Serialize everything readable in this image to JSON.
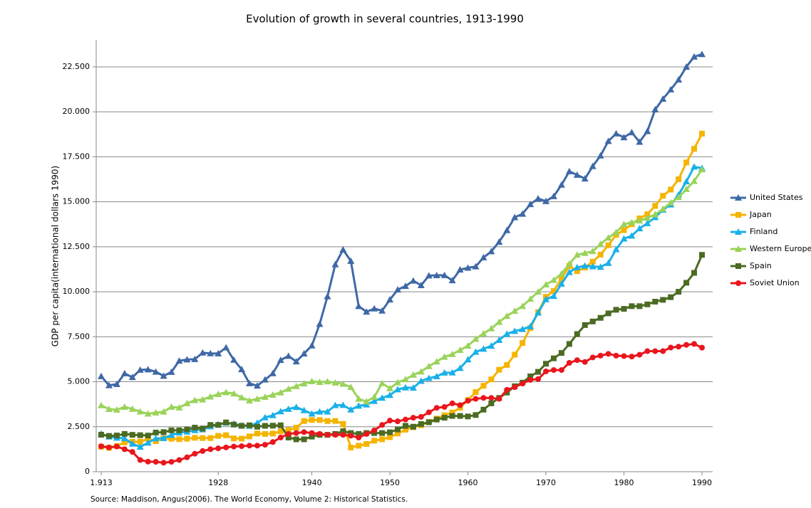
{
  "chart_data": {
    "type": "line",
    "title": "Evolution of growth in several countries, 1913-1990",
    "y_label": "GDP per capita(international dollars 1990)",
    "source": "Source:  Maddison, Angus(2006). The World Economy, Volume 2: Historical Statistics.",
    "x": [
      1913,
      1914,
      1915,
      1916,
      1917,
      1918,
      1919,
      1920,
      1921,
      1922,
      1923,
      1924,
      1925,
      1926,
      1927,
      1928,
      1929,
      1930,
      1931,
      1932,
      1933,
      1934,
      1935,
      1936,
      1937,
      1938,
      1939,
      1940,
      1941,
      1942,
      1943,
      1944,
      1945,
      1946,
      1947,
      1948,
      1949,
      1950,
      1951,
      1952,
      1953,
      1954,
      1955,
      1956,
      1957,
      1958,
      1959,
      1960,
      1961,
      1962,
      1963,
      1964,
      1965,
      1966,
      1967,
      1968,
      1969,
      1970,
      1971,
      1972,
      1973,
      1974,
      1975,
      1976,
      1977,
      1978,
      1979,
      1980,
      1981,
      1982,
      1983,
      1984,
      1985,
      1986,
      1987,
      1988,
      1989,
      1990
    ],
    "xlim": [
      1913,
      1990
    ],
    "xticks": [
      {
        "value": 1913,
        "label": "1.913"
      },
      1928,
      1940,
      1950,
      1960,
      1970,
      1980,
      1990
    ],
    "ylim": [
      0,
      24000
    ],
    "yticks": [
      0,
      {
        "value": 2500,
        "label": "2.500"
      },
      {
        "value": 5000,
        "label": "5.000"
      },
      {
        "value": 7500,
        "label": "7.500"
      },
      {
        "value": 10000,
        "label": "10.000"
      },
      {
        "value": 12500,
        "label": "12.500"
      },
      {
        "value": 15000,
        "label": "15.000"
      },
      {
        "value": 17500,
        "label": "17.500"
      },
      {
        "value": 20000,
        "label": "20.000"
      },
      {
        "value": 22500,
        "label": "22.500"
      }
    ],
    "grid": true,
    "legend": "right",
    "series": [
      {
        "name": "United States",
        "color": "#3f68a6",
        "marker": "triangle",
        "values": [
          5301,
          4799,
          4864,
          5459,
          5248,
          5659,
          5680,
          5552,
          5323,
          5540,
          6164,
          6233,
          6252,
          6612,
          6575,
          6569,
          6899,
          6213,
          5691,
          4908,
          4777,
          5114,
          5467,
          6204,
          6430,
          6126,
          6561,
          7010,
          8206,
          9741,
          11518,
          12341,
          11709,
          9197,
          8886,
          9065,
          8944,
          9561,
          10116,
          10316,
          10613,
          10359,
          10897,
          10914,
          10920,
          10631,
          11230,
          11328,
          11402,
          11905,
          12242,
          12773,
          13419,
          14134,
          14330,
          14863,
          15179,
          15030,
          15304,
          15944,
          16689,
          16491,
          16284,
          16975,
          17567,
          18373,
          18789,
          18577,
          18856,
          18325,
          18920,
          20123,
          20717,
          21236,
          21788,
          22499,
          23059,
          23201
        ]
      },
      {
        "name": "Japan",
        "color": "#f5b400",
        "marker": "square",
        "values": [
          1387,
          1327,
          1430,
          1630,
          1665,
          1668,
          1827,
          1696,
          1860,
          1831,
          1809,
          1836,
          1885,
          1872,
          1870,
          1992,
          2026,
          1850,
          1837,
          1962,
          2122,
          2098,
          2120,
          2244,
          2315,
          2449,
          2816,
          2874,
          2873,
          2818,
          2822,
          2659,
          1346,
          1444,
          1541,
          1725,
          1800,
          1921,
          2126,
          2336,
          2474,
          2582,
          2771,
          2948,
          3136,
          3289,
          3554,
          3986,
          4426,
          4777,
          5129,
          5668,
          5934,
          6506,
          7152,
          7983,
          8874,
          9714,
          10040,
          10734,
          11434,
          11145,
          11344,
          11669,
          12064,
          12585,
          13163,
          13428,
          13754,
          14078,
          14307,
          14773,
          15332,
          15680,
          16251,
          17185,
          17943,
          18789
        ]
      },
      {
        "name": "Finland",
        "color": "#1ab0e8",
        "marker": "triangle",
        "values": [
          2111,
          1947,
          1881,
          1854,
          1552,
          1379,
          1607,
          1846,
          1862,
          2035,
          2172,
          2226,
          2304,
          2349,
          2517,
          2624,
          2717,
          2666,
          2568,
          2543,
          2715,
          3017,
          3132,
          3350,
          3486,
          3589,
          3408,
          3220,
          3336,
          3336,
          3690,
          3702,
          3450,
          3660,
          3725,
          3926,
          4102,
          4253,
          4571,
          4677,
          4660,
          5043,
          5197,
          5299,
          5501,
          5504,
          5756,
          6230,
          6658,
          6823,
          6994,
          7317,
          7657,
          7812,
          7923,
          8069,
          8838,
          9577,
          9761,
          10444,
          11085,
          11353,
          11441,
          11409,
          11378,
          11596,
          12357,
          12949,
          13110,
          13517,
          13806,
          14140,
          14557,
          14843,
          15389,
          16129,
          16946,
          16866
        ]
      },
      {
        "name": "Western Europe",
        "color": "#9ad35a",
        "marker": "triangle",
        "values": [
          3688,
          3478,
          3440,
          3600,
          3490,
          3340,
          3220,
          3280,
          3330,
          3600,
          3560,
          3800,
          3970,
          4010,
          4170,
          4310,
          4410,
          4340,
          4120,
          3950,
          4050,
          4150,
          4270,
          4400,
          4600,
          4750,
          4900,
          5020,
          4980,
          5010,
          4940,
          4880,
          4700,
          4050,
          3900,
          4150,
          4920,
          4630,
          4960,
          5130,
          5380,
          5560,
          5860,
          6120,
          6380,
          6530,
          6760,
          7000,
          7380,
          7680,
          7960,
          8320,
          8650,
          8930,
          9200,
          9600,
          10000,
          10400,
          10650,
          11000,
          11550,
          12050,
          12150,
          12250,
          12650,
          13000,
          13300,
          13750,
          13850,
          13950,
          14100,
          14300,
          14600,
          14950,
          15250,
          15700,
          16150,
          16800
        ]
      },
      {
        "name": "Spain",
        "color": "#4b6b23",
        "marker": "square",
        "values": [
          2056,
          1990,
          2014,
          2100,
          2050,
          2030,
          2010,
          2177,
          2200,
          2300,
          2300,
          2350,
          2450,
          2400,
          2600,
          2600,
          2739,
          2620,
          2550,
          2580,
          2500,
          2550,
          2560,
          2580,
          1900,
          1800,
          1800,
          1950,
          2050,
          2050,
          2100,
          2250,
          2150,
          2100,
          2150,
          2150,
          2150,
          2189,
          2350,
          2550,
          2500,
          2650,
          2750,
          2900,
          3000,
          3100,
          3100,
          3072,
          3150,
          3450,
          3800,
          4100,
          4400,
          4750,
          4950,
          5300,
          5550,
          6000,
          6300,
          6600,
          7100,
          7650,
          8150,
          8350,
          8550,
          8800,
          9000,
          9050,
          9200,
          9200,
          9300,
          9450,
          9550,
          9700,
          10000,
          10500,
          11050,
          12050
        ]
      },
      {
        "name": "Soviet Union",
        "color": "#e8161d",
        "marker": "circle",
        "values": [
          1414,
          1350,
          1400,
          1250,
          1100,
          650,
          560,
          550,
          500,
          550,
          650,
          800,
          1000,
          1150,
          1250,
          1300,
          1350,
          1400,
          1420,
          1450,
          1450,
          1500,
          1650,
          1900,
          2100,
          2150,
          2200,
          2150,
          2100,
          2050,
          2050,
          2050,
          2000,
          1900,
          2100,
          2300,
          2600,
          2841,
          2800,
          2900,
          3000,
          3050,
          3300,
          3550,
          3600,
          3800,
          3700,
          3945,
          4050,
          4100,
          4100,
          4050,
          4550,
          4700,
          4900,
          5100,
          5150,
          5575,
          5650,
          5650,
          6050,
          6200,
          6100,
          6350,
          6450,
          6550,
          6450,
          6427,
          6400,
          6500,
          6700,
          6700,
          6700,
          6900,
          6950,
          7050,
          7100,
          6894
        ]
      }
    ]
  }
}
